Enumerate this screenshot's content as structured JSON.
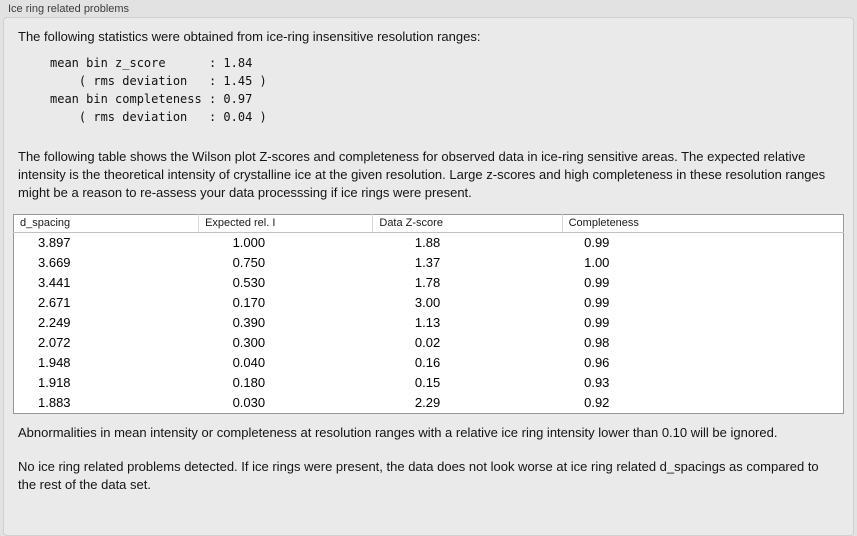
{
  "panel": {
    "title": "Ice ring related problems"
  },
  "intro": "The following statistics were obtained from ice-ring insensitive resolution ranges:",
  "stats": "mean bin z_score      : 1.84\n    ( rms deviation   : 1.45 )\nmean bin completeness : 0.97\n    ( rms deviation   : 0.04 )",
  "description": "The following table shows the Wilson plot Z-scores and completeness for observed data in ice-ring sensitive areas. The expected relative intensity is the theoretical intensity of crystalline ice at the given resolution. Large z-scores and high completeness in these resolution ranges might be a reason to re-assess your data processsing if ice rings were present.",
  "table": {
    "headers": [
      "d_spacing",
      "Expected rel. I",
      "Data Z-score",
      "Completeness"
    ],
    "rows": [
      [
        "3.897",
        "1.000",
        "1.88",
        "0.99"
      ],
      [
        "3.669",
        "0.750",
        "1.37",
        "1.00"
      ],
      [
        "3.441",
        "0.530",
        "1.78",
        "0.99"
      ],
      [
        "2.671",
        "0.170",
        "3.00",
        "0.99"
      ],
      [
        "2.249",
        "0.390",
        "1.13",
        "0.99"
      ],
      [
        "2.072",
        "0.300",
        "0.02",
        "0.98"
      ],
      [
        "1.948",
        "0.040",
        "0.16",
        "0.96"
      ],
      [
        "1.918",
        "0.180",
        "0.15",
        "0.93"
      ],
      [
        "1.883",
        "0.030",
        "2.29",
        "0.92"
      ]
    ]
  },
  "note_ignore": "Abnormalities in mean intensity or completeness at resolution ranges with a relative ice ring intensity lower than 0.10 will be ignored.",
  "conclusion": "No ice ring related problems detected. If ice rings were present, the data does not look worse at ice ring related d_spacings as compared to the rest of the data set."
}
